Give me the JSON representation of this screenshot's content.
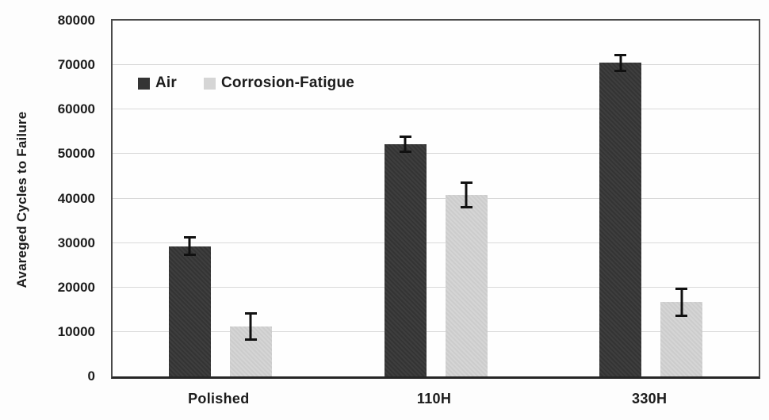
{
  "chart_data": {
    "type": "bar",
    "title": "",
    "xlabel": "",
    "ylabel": "Avareged Cycles to Failure",
    "ylim": [
      0,
      80000
    ],
    "yticks": [
      0,
      10000,
      20000,
      30000,
      40000,
      50000,
      60000,
      70000,
      80000
    ],
    "grid": "horizontal",
    "gridline_color": "#d9d9d9",
    "legend_position": "top-left-inside",
    "categories": [
      "Polished",
      "110H",
      "330H"
    ],
    "series": [
      {
        "name": "Air",
        "color": "#343434",
        "values": [
          29300,
          52200,
          70500
        ],
        "errors": [
          2200,
          2000,
          2100
        ]
      },
      {
        "name": "Corrosion-Fatigue",
        "color": "#d5d5d5",
        "values": [
          11300,
          40800,
          16700
        ],
        "errors": [
          3200,
          3100,
          3300
        ]
      }
    ],
    "error_bar_color": "#111111"
  }
}
